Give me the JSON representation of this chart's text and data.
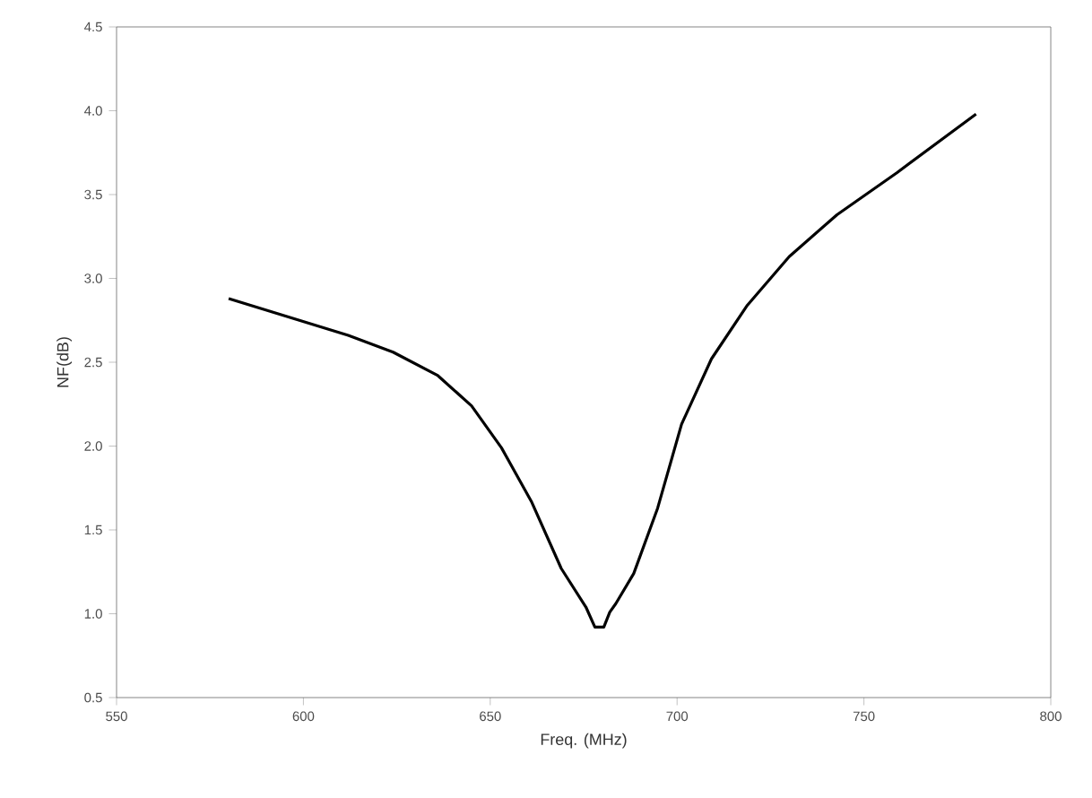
{
  "chart_data": {
    "type": "line",
    "xlabel": "Freq. (MHz)",
    "ylabel": "NF(dB)",
    "x": [
      580,
      596,
      612,
      624,
      636,
      645,
      653,
      661,
      669,
      675.6,
      678,
      680.4,
      682,
      683.6,
      688.4,
      694.8,
      701.2,
      709.2,
      718.8,
      730,
      742.8,
      758.8,
      780
    ],
    "values": [
      2.88,
      2.77,
      2.66,
      2.56,
      2.42,
      2.24,
      1.99,
      1.67,
      1.27,
      1.04,
      0.92,
      0.92,
      1.01,
      1.06,
      1.24,
      1.63,
      2.13,
      2.52,
      2.84,
      3.13,
      3.38,
      3.63,
      3.98
    ],
    "color": "#000000",
    "xlim": [
      550,
      800
    ],
    "xticks": [
      550,
      600,
      650,
      700,
      750,
      800
    ],
    "ylim": [
      0.5,
      4.5
    ],
    "yticks": [
      0.5,
      {
        "value": 1.0,
        "label": "1.0"
      },
      1.5,
      {
        "value": 2.0,
        "label": "2.0"
      },
      2.5,
      {
        "value": 3.0,
        "label": "3.0"
      },
      3.5,
      {
        "value": 4.0,
        "label": "4.0"
      },
      4.5
    ],
    "grid": false,
    "marker": "none",
    "line_style": "solid"
  }
}
